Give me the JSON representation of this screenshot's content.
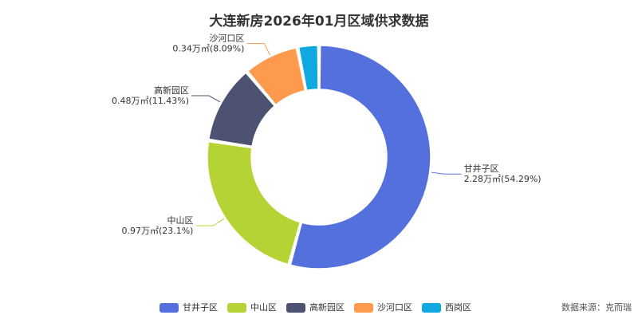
{
  "chart_data": {
    "type": "donut",
    "title": "大连新房2026年01月区域供求数据",
    "categories": [
      "甘井子区",
      "中山区",
      "高新园区",
      "沙河口区",
      "西岗区"
    ],
    "values": [
      2.28,
      0.97,
      0.48,
      0.34,
      0.13
    ],
    "value_labels": [
      "2.28万㎡(54.29%)",
      "0.97万㎡(23.1%)",
      "0.48万㎡(11.43%)",
      "0.34万㎡(8.09%)",
      null
    ],
    "colors": [
      "#5470dc",
      "#b5d334",
      "#4d5272",
      "#fe9a4d",
      "#10a8e0"
    ],
    "legend": "bottom",
    "source": "数据来源：克而瑞"
  }
}
